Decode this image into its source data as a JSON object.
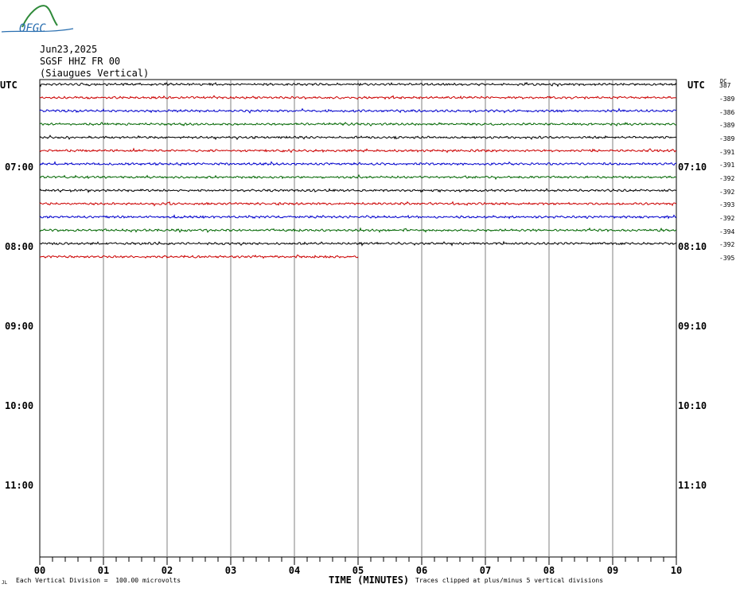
{
  "logo": {
    "text": "OFGC",
    "colors": {
      "arc": "#2f8a3a",
      "text": "#2a6fb0"
    }
  },
  "header": {
    "date": "Jun23,2025",
    "station": "SGSF HHZ FR 00",
    "site": "(Siaugues Vertical)"
  },
  "axis": {
    "utc_left": "UTC",
    "utc_right": "UTC",
    "dc_label": "DC",
    "hours_left": [
      "07:00",
      "08:00",
      "09:00",
      "10:00",
      "11:00"
    ],
    "hours_right": [
      "07:10",
      "08:10",
      "09:10",
      "10:10",
      "11:10"
    ],
    "x_ticks": [
      "00",
      "01",
      "02",
      "03",
      "04",
      "05",
      "06",
      "07",
      "08",
      "09",
      "10"
    ],
    "x_title": "TIME (MINUTES)"
  },
  "footer": {
    "corner": "JL",
    "division": "Each Vertical Division =  100.00 microvolts",
    "clip": "Traces clipped at plus/minus 5 vertical divisions"
  },
  "chart_data": {
    "type": "line",
    "title": "SGSF HHZ FR 00",
    "xlabel": "TIME (MINUTES)",
    "ylabel": "UTC",
    "xlim": [
      0,
      10
    ],
    "trace_interval_minutes": 10,
    "grid": true,
    "trace_colors": [
      "#000000",
      "#cc0000",
      "#0000cc",
      "#006600"
    ],
    "traces": [
      {
        "dc": "387",
        "end_minute": 10
      },
      {
        "dc": "-389",
        "end_minute": 10
      },
      {
        "dc": "-386",
        "end_minute": 10
      },
      {
        "dc": "-389",
        "end_minute": 10
      },
      {
        "dc": "-389",
        "end_minute": 10
      },
      {
        "dc": "-391",
        "end_minute": 10
      },
      {
        "dc": "-391",
        "end_minute": 10
      },
      {
        "dc": "-392",
        "end_minute": 10
      },
      {
        "dc": "-392",
        "end_minute": 10
      },
      {
        "dc": "-393",
        "end_minute": 10
      },
      {
        "dc": "-392",
        "end_minute": 10
      },
      {
        "dc": "-394",
        "end_minute": 10
      },
      {
        "dc": "-392",
        "end_minute": 10
      },
      {
        "dc": "-395",
        "end_minute": 5
      }
    ]
  }
}
